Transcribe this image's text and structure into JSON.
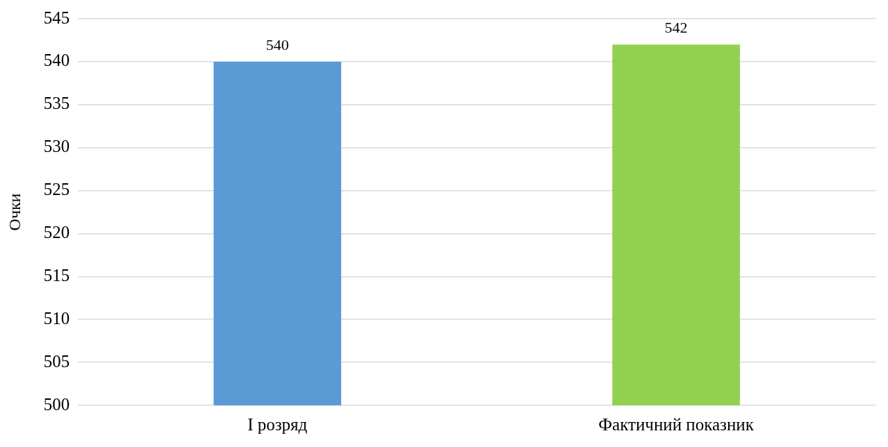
{
  "chart_data": {
    "type": "bar",
    "ylabel": "Очки",
    "categories": [
      "I розряд",
      "Фактичний показник"
    ],
    "values": [
      540,
      542
    ],
    "colors": [
      "#5b9bd5",
      "#92d050"
    ],
    "ylim": [
      500,
      545
    ],
    "yticks": [
      500,
      505,
      510,
      515,
      520,
      525,
      530,
      535,
      540,
      545
    ],
    "grid": "y",
    "legend": false,
    "data_labels": true
  }
}
